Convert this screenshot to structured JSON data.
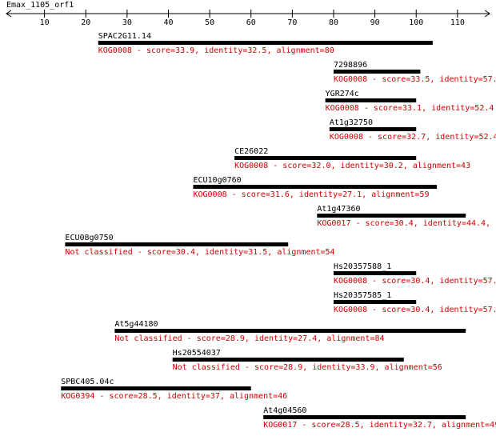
{
  "title": "Emax_1105_orf1",
  "ruler": {
    "xlim": [
      0,
      117
    ],
    "ticks": [
      10,
      20,
      30,
      40,
      50,
      60,
      70,
      80,
      90,
      100,
      110
    ]
  },
  "hits": [
    {
      "name": "SPAC2G11.14",
      "start": 23,
      "end": 104,
      "label": "KOG0008 - score=33.9, identity=32.5, alignment=80"
    },
    {
      "name": "7298896",
      "start": 80,
      "end": 101,
      "label": "KOG0008 - score=33.5, identity=57."
    },
    {
      "name": "YGR274c",
      "start": 78,
      "end": 100,
      "label": "KOG0008 - score=33.1, identity=52.4"
    },
    {
      "name": "At1g32750",
      "start": 79,
      "end": 100,
      "label": "KOG0008 - score=32.7, identity=52.4"
    },
    {
      "name": "CE26022",
      "start": 56,
      "end": 100,
      "label": "KOG0008 - score=32.0, identity=30.2, alignment=43"
    },
    {
      "name": "ECU10g0760",
      "start": 46,
      "end": 105,
      "label": "KOG0008 - score=31.6, identity=27.1, alignment=59"
    },
    {
      "name": "At1g47360",
      "start": 76,
      "end": 112,
      "label": "KOG0017 - score=30.4, identity=44.4,"
    },
    {
      "name": "ECU08g0750",
      "start": 15,
      "end": 69,
      "label": "Not classified - score=30.4, identity=31.5, alignment=54"
    },
    {
      "name": "Hs20357588_1",
      "start": 80,
      "end": 100,
      "label": "KOG0008 - score=30.4, identity=57."
    },
    {
      "name": "Hs20357585_1",
      "start": 80,
      "end": 100,
      "label": "KOG0008 - score=30.4, identity=57."
    },
    {
      "name": "At5g44180",
      "start": 27,
      "end": 112,
      "label": "Not classified - score=28.9, identity=27.4, alignment=84"
    },
    {
      "name": "Hs20554037",
      "start": 41,
      "end": 97,
      "label": "Not classified - score=28.9, identity=33.9, alignment=56"
    },
    {
      "name": "SPBC405.04c",
      "start": 14,
      "end": 60,
      "label": "KOG0394 - score=28.5, identity=37, alignment=46"
    },
    {
      "name": "At4g04560",
      "start": 63,
      "end": 112,
      "label": "KOG0017 - score=28.5, identity=32.7, alignment=49"
    }
  ]
}
